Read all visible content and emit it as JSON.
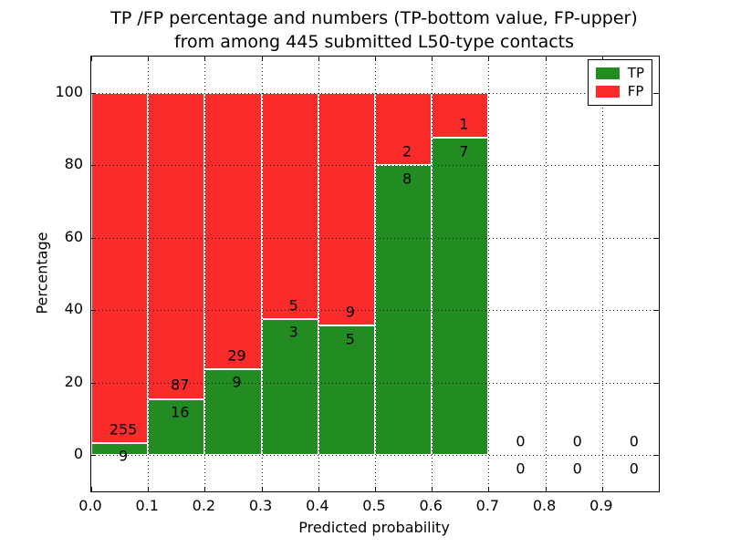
{
  "title": {
    "line1": "TP /FP percentage and numbers (TP-bottom value, FP-upper)",
    "line2": "from among 445 submitted L50-type contacts"
  },
  "chart_data": {
    "type": "bar",
    "stacked": true,
    "normalized_to_percent": true,
    "title": "TP /FP percentage and numbers (TP-bottom value, FP-upper) from among 445 submitted L50-type contacts",
    "xlabel": "Predicted probability",
    "ylabel": "Percentage",
    "xlim": [
      0.0,
      1.0
    ],
    "ylim": [
      -10,
      110
    ],
    "grid": true,
    "bin_width": 0.1,
    "xtick_values": [
      0.0,
      0.1,
      0.2,
      0.3,
      0.4,
      0.5,
      0.6,
      0.7,
      0.8,
      0.9
    ],
    "xtick_labels": [
      "0.0",
      "0.1",
      "0.2",
      "0.3",
      "0.4",
      "0.5",
      "0.6",
      "0.7",
      "0.8",
      "0.9"
    ],
    "ytick_values": [
      0,
      20,
      40,
      60,
      80,
      100
    ],
    "ytick_labels": [
      "0",
      "20",
      "40",
      "60",
      "80",
      "100"
    ],
    "categories": [
      "0.0-0.1",
      "0.1-0.2",
      "0.2-0.3",
      "0.3-0.4",
      "0.4-0.5",
      "0.5-0.6",
      "0.6-0.7",
      "0.7-0.8",
      "0.8-0.9",
      "0.9-1.0"
    ],
    "series": [
      {
        "name": "TP",
        "color": "#228b22",
        "values": [
          9,
          16,
          9,
          3,
          5,
          8,
          7,
          0,
          0,
          0
        ]
      },
      {
        "name": "FP",
        "color": "#f92b2b",
        "values": [
          255,
          87,
          29,
          5,
          9,
          2,
          1,
          0,
          0,
          0
        ]
      }
    ],
    "tp_percent_heights": [
      3.41,
      15.53,
      23.68,
      37.5,
      35.71,
      80.0,
      87.5,
      null,
      null,
      null
    ],
    "total_contacts": 445,
    "legend": {
      "position": "upper right",
      "entries": [
        {
          "label": "TP",
          "color": "#228b22"
        },
        {
          "label": "FP",
          "color": "#f92b2b"
        }
      ]
    }
  }
}
